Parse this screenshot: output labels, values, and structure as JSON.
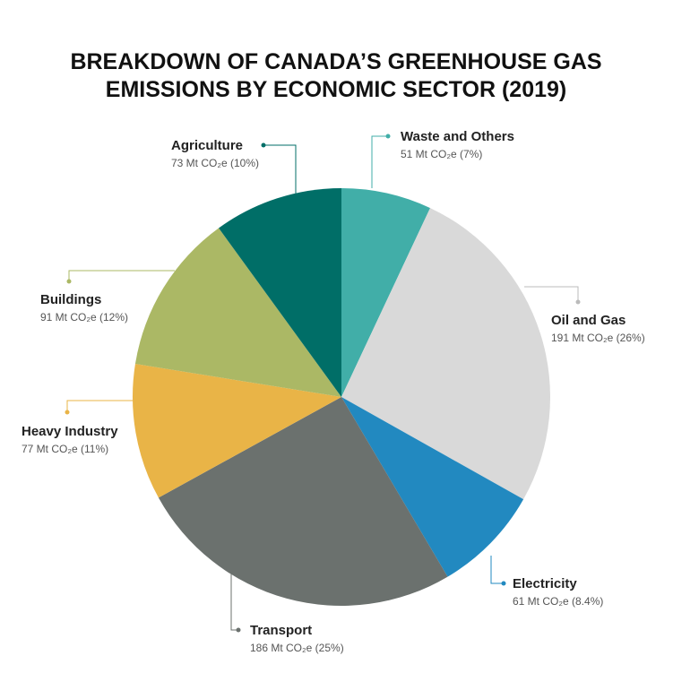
{
  "chart_data": {
    "type": "pie",
    "title": [
      "BREAKDOWN OF CANADA’S GREENHOUSE GAS",
      "EMISSIONS BY ECONOMIC SECTOR (2019)"
    ],
    "categories": [
      "Waste and Others",
      "Oil and Gas",
      "Electricity",
      "Transport",
      "Heavy Industry",
      "Buildings",
      "Agriculture"
    ],
    "values": [
      51,
      191,
      61,
      186,
      77,
      91,
      73
    ],
    "value_labels": [
      "51 Mt CO₂e (7%)",
      "191 Mt CO₂e (26%)",
      "61 Mt CO₂e (8.4%)",
      "186 Mt CO₂e (25%)",
      "77 Mt CO₂e (11%)",
      "91 Mt CO₂e (12%)",
      "73 Mt CO₂e (10%)"
    ],
    "colors": [
      "#41aea8",
      "#d9d9d9",
      "#2289c0",
      "#6b716e",
      "#e9b447",
      "#abb865",
      "#006e67"
    ]
  }
}
